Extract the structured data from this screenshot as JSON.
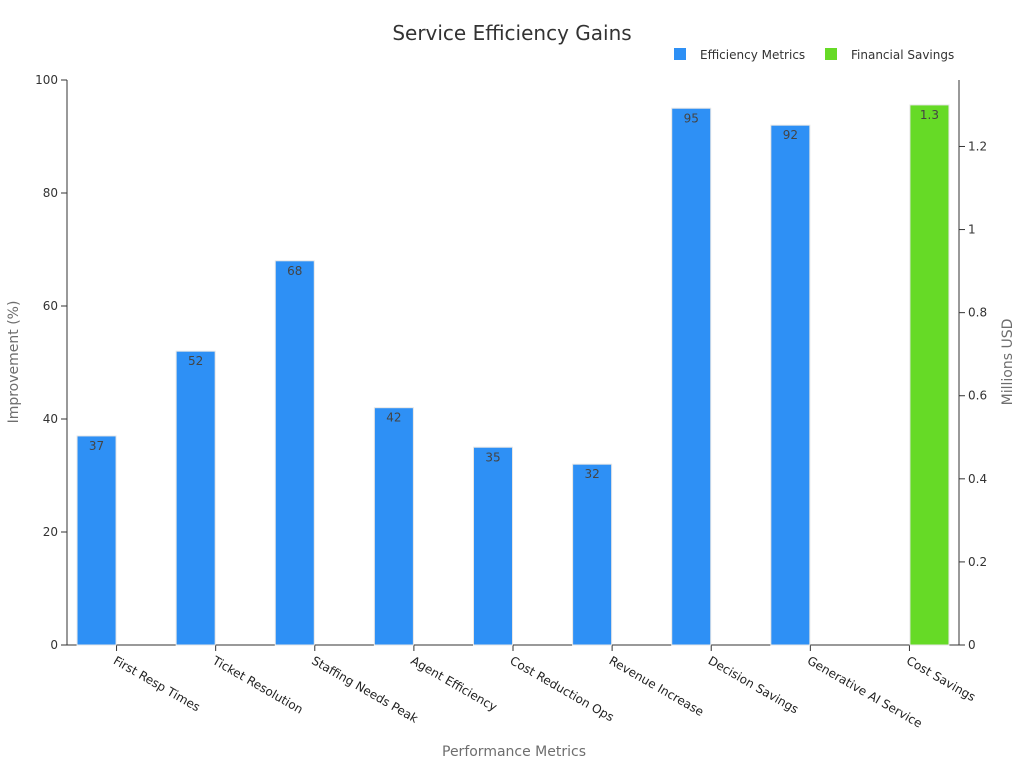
{
  "chart_data": {
    "type": "bar",
    "title": "Service Efficiency Gains",
    "xlabel": "Performance Metrics",
    "ylabel": "Improvement (%)",
    "y2label": "Millions USD",
    "ylim": [
      0,
      100
    ],
    "y2lim": [
      0,
      1.36
    ],
    "yticks": [
      "0",
      "20",
      "40",
      "60",
      "80",
      "100"
    ],
    "y2ticks": [
      "0",
      "0.2",
      "0.4",
      "0.6",
      "0.8",
      "1",
      "1.2"
    ],
    "categories": [
      "First Resp Times",
      "Ticket Resolution",
      "Staffing Needs Peak",
      "Agent Efficiency",
      "Cost Reduction Ops",
      "Revenue Increase",
      "Decision Savings",
      "Generative AI Service",
      "Cost Savings"
    ],
    "legend_position": "top-right",
    "series": [
      {
        "name": "Efficiency Metrics",
        "axis": "left",
        "color": "#2e90f5",
        "values": [
          37,
          52,
          68,
          42,
          35,
          32,
          95,
          92,
          null
        ],
        "labels": [
          "37",
          "52",
          "68",
          "42",
          "35",
          "32",
          "95",
          "92",
          ""
        ]
      },
      {
        "name": "Financial Savings",
        "axis": "right",
        "color": "#66da26",
        "values": [
          null,
          null,
          null,
          null,
          null,
          null,
          null,
          null,
          1.3
        ],
        "labels": [
          "",
          "",
          "",
          "",
          "",
          "",
          "",
          "",
          "1.3"
        ]
      }
    ]
  }
}
